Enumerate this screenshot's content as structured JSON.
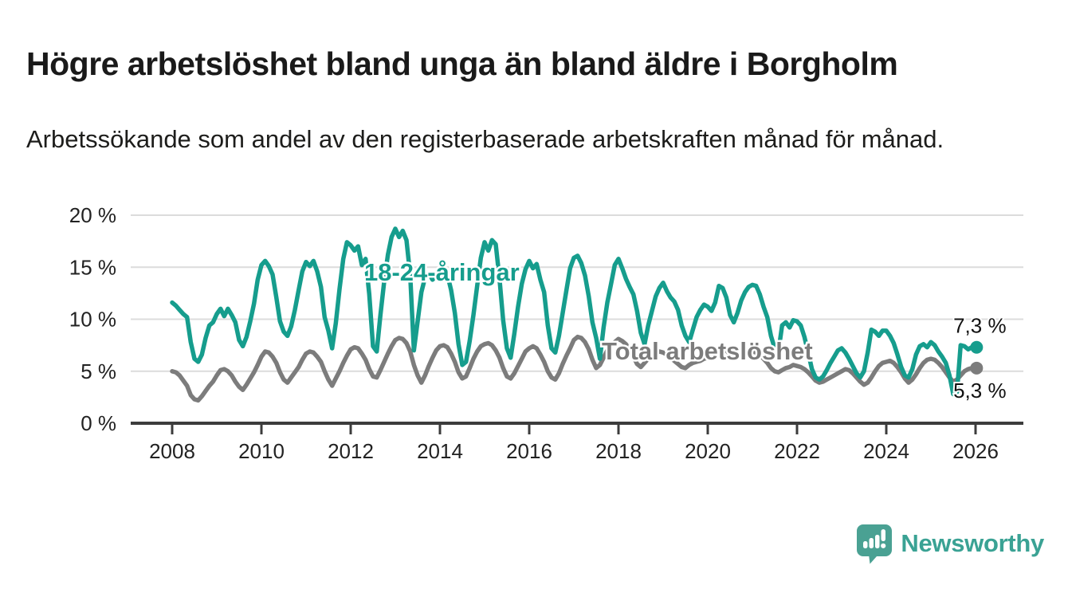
{
  "page": {
    "title": "Högre arbetslöshet bland unga än bland äldre i Borgholm",
    "subtitle": "Arbetssökande som andel av den registerbaserade arbetskraften månad för månad.",
    "background_color": "#ffffff",
    "text_color": "#1a1a1a"
  },
  "branding": {
    "logo_text": "Newsworthy",
    "logo_color": "#3aa294",
    "logo_icon": "speech-bubble-bar-chart-icon",
    "logo_icon_color": "#4aa193"
  },
  "chart_data": {
    "type": "line",
    "frequency": "monthly",
    "x_start": "2008-01",
    "x_end": "2025-12",
    "x_ticks": [
      2008,
      2010,
      2012,
      2014,
      2016,
      2018,
      2020,
      2022,
      2024,
      2026
    ],
    "ylim": [
      0,
      20
    ],
    "y_tick_values": [
      0,
      5,
      10,
      15,
      20
    ],
    "y_tick_labels": [
      "0 %",
      "5 %",
      "10 %",
      "15 %",
      "20 %"
    ],
    "grid": "horizontal",
    "grid_color": "#dcdcdc",
    "axis_color": "#3c3c3c",
    "legend_position": "inline-labels",
    "series": [
      {
        "name": "Total arbetslöshet",
        "color": "#7c7c7c",
        "end_label": "5,3 %",
        "end_value": 5.3,
        "values": [
          5.0,
          4.9,
          4.6,
          4.1,
          3.6,
          2.7,
          2.3,
          2.2,
          2.6,
          3.1,
          3.6,
          4.0,
          4.6,
          5.1,
          5.2,
          5.0,
          4.6,
          4.0,
          3.5,
          3.2,
          3.7,
          4.3,
          4.9,
          5.6,
          6.4,
          6.9,
          6.8,
          6.4,
          5.8,
          4.9,
          4.2,
          3.9,
          4.4,
          4.9,
          5.4,
          6.1,
          6.7,
          6.9,
          6.8,
          6.4,
          5.9,
          5.0,
          4.2,
          3.6,
          4.3,
          5.0,
          5.8,
          6.5,
          7.1,
          7.3,
          7.2,
          6.7,
          6.1,
          5.2,
          4.5,
          4.4,
          5.1,
          5.9,
          6.7,
          7.4,
          8.0,
          8.2,
          8.1,
          7.7,
          6.9,
          5.6,
          4.6,
          3.9,
          4.6,
          5.5,
          6.3,
          7.0,
          7.4,
          7.5,
          7.3,
          6.7,
          5.9,
          4.9,
          4.3,
          4.5,
          5.3,
          6.2,
          6.9,
          7.4,
          7.6,
          7.7,
          7.5,
          7.0,
          6.3,
          5.3,
          4.5,
          4.3,
          4.8,
          5.5,
          6.2,
          6.9,
          7.2,
          7.4,
          7.2,
          6.6,
          5.9,
          5.0,
          4.4,
          4.2,
          4.8,
          5.7,
          6.5,
          7.2,
          8.0,
          8.3,
          8.2,
          7.8,
          7.1,
          6.1,
          5.3,
          5.6,
          6.3,
          7.0,
          7.5,
          7.8,
          8.1,
          7.9,
          7.6,
          7.1,
          6.4,
          5.7,
          5.4,
          5.8,
          6.2,
          6.5,
          6.7,
          6.9,
          6.8,
          6.6,
          6.3,
          6.0,
          5.7,
          5.4,
          5.3,
          5.6,
          5.8,
          5.9,
          6.0,
          6.2,
          6.3,
          6.2,
          6.5,
          7.0,
          7.2,
          7.0,
          6.6,
          6.4,
          6.5,
          6.6,
          6.7,
          6.8,
          6.9,
          6.8,
          6.6,
          6.2,
          5.8,
          5.3,
          5.0,
          4.9,
          5.1,
          5.3,
          5.4,
          5.6,
          5.5,
          5.4,
          5.2,
          4.9,
          4.5,
          4.1,
          3.9,
          4.0,
          4.2,
          4.4,
          4.6,
          4.8,
          5.0,
          5.2,
          5.1,
          4.8,
          4.4,
          4.0,
          3.7,
          3.9,
          4.4,
          5.0,
          5.5,
          5.8,
          5.9,
          6.0,
          5.8,
          5.4,
          4.9,
          4.3,
          3.9,
          4.2,
          4.7,
          5.3,
          5.8,
          6.1,
          6.2,
          6.1,
          5.8,
          5.4,
          4.9,
          4.4,
          4.0,
          4.2,
          4.6,
          5.0,
          5.2,
          5.3
        ]
      },
      {
        "name": "18-24-åringar",
        "color": "#169d8d",
        "end_label": "7,3 %",
        "end_value": 7.3,
        "values": [
          11.6,
          11.3,
          10.9,
          10.5,
          10.2,
          7.8,
          6.2,
          5.9,
          6.6,
          8.2,
          9.4,
          9.7,
          10.5,
          11.0,
          10.3,
          11.0,
          10.4,
          9.7,
          8.0,
          7.4,
          8.3,
          9.8,
          11.5,
          13.8,
          15.2,
          15.6,
          15.1,
          14.3,
          12.1,
          9.8,
          8.8,
          8.4,
          9.3,
          10.9,
          12.8,
          14.6,
          15.5,
          15.1,
          15.6,
          14.6,
          13.1,
          10.2,
          8.9,
          7.2,
          9.6,
          12.9,
          15.8,
          17.4,
          17.1,
          16.6,
          17.0,
          15.2,
          15.8,
          12.4,
          7.4,
          6.9,
          10.4,
          13.6,
          16.2,
          17.9,
          18.7,
          17.9,
          18.5,
          17.6,
          14.2,
          7.0,
          9.8,
          12.6,
          14.0,
          14.4,
          13.8,
          14.2,
          14.5,
          13.9,
          14.3,
          12.8,
          10.6,
          7.6,
          5.6,
          5.9,
          7.9,
          10.4,
          13.2,
          15.9,
          17.4,
          16.6,
          17.6,
          17.2,
          13.9,
          9.9,
          7.2,
          6.3,
          8.6,
          11.2,
          13.4,
          14.8,
          15.6,
          14.9,
          15.3,
          13.8,
          12.6,
          9.4,
          7.2,
          6.8,
          8.4,
          10.6,
          12.8,
          14.9,
          15.9,
          16.1,
          15.4,
          14.2,
          12.2,
          9.7,
          8.2,
          6.2,
          9.2,
          11.6,
          13.4,
          15.2,
          15.8,
          14.9,
          13.9,
          13.1,
          12.4,
          10.8,
          8.7,
          7.6,
          9.4,
          10.8,
          12.2,
          13.0,
          13.5,
          12.7,
          12.1,
          11.7,
          10.9,
          9.4,
          8.4,
          7.8,
          9.0,
          10.2,
          10.9,
          11.4,
          11.2,
          10.8,
          11.6,
          13.2,
          13.0,
          12.1,
          10.4,
          9.7,
          10.6,
          11.8,
          12.6,
          13.1,
          13.3,
          13.2,
          12.4,
          11.2,
          10.2,
          8.4,
          7.2,
          6.9,
          9.4,
          9.7,
          9.2,
          9.9,
          9.8,
          9.4,
          8.3,
          6.8,
          5.2,
          4.4,
          4.2,
          4.5,
          5.1,
          5.8,
          6.4,
          7.0,
          7.2,
          6.8,
          6.2,
          5.5,
          4.8,
          4.4,
          5.0,
          6.8,
          9.0,
          8.8,
          8.4,
          8.9,
          8.9,
          8.4,
          7.7,
          6.6,
          5.4,
          4.6,
          4.4,
          5.2,
          6.6,
          7.4,
          7.6,
          7.3,
          7.8,
          7.5,
          6.9,
          6.4,
          5.8,
          4.6,
          2.8,
          3.0,
          7.5,
          7.4,
          7.1,
          7.3
        ]
      }
    ]
  }
}
